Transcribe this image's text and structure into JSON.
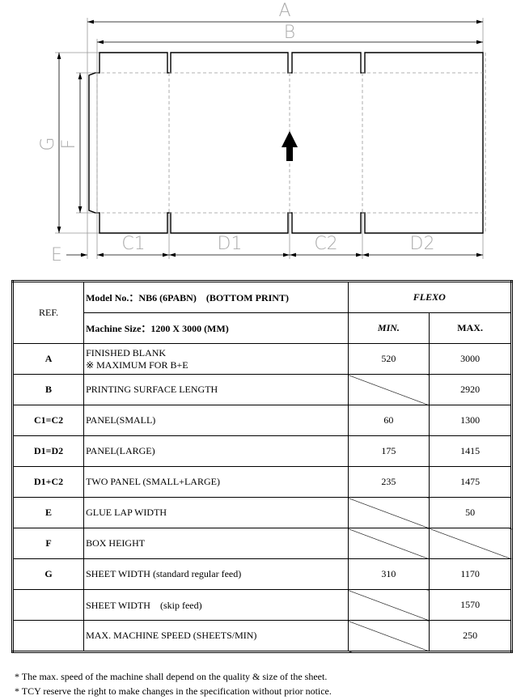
{
  "diagram": {
    "labels": {
      "A": "A",
      "B": "B",
      "G": "G",
      "F": "F",
      "E": "E",
      "C1": "C1",
      "D1": "D1",
      "C2": "C2",
      "D2": "D2"
    }
  },
  "table": {
    "ref_header": "REF.",
    "model": "Model No.：NB6 (6PABN)　(BOTTOM PRINT)",
    "machine_size": "Machine Size：1200 X 3000 (MM)",
    "flexo": "FLEXO",
    "min": "MIN.",
    "max": "MAX.",
    "rows": [
      {
        "ref": "A",
        "desc": "FINISHED BLANK",
        "desc2": "※ MAXIMUM FOR B+E",
        "min": "520",
        "max": "3000"
      },
      {
        "ref": "B",
        "desc": "PRINTING SURFACE LENGTH",
        "min": null,
        "max": "2920"
      },
      {
        "ref": "C1=C2",
        "desc": "PANEL(SMALL)",
        "min": "60",
        "max": "1300"
      },
      {
        "ref": "D1=D2",
        "desc": "PANEL(LARGE)",
        "min": "175",
        "max": "1415"
      },
      {
        "ref": "D1+C2",
        "desc": "TWO PANEL (SMALL+LARGE)",
        "min": "235",
        "max": "1475"
      },
      {
        "ref": "E",
        "desc": "GLUE LAP WIDTH",
        "min": null,
        "max": "50"
      },
      {
        "ref": "F",
        "desc": "BOX HEIGHT",
        "min": null,
        "max": null
      },
      {
        "ref": "G",
        "desc": "SHEET WIDTH (standard regular feed)",
        "min": "310",
        "max": "1170"
      },
      {
        "ref": "",
        "desc": "SHEET WIDTH　(skip feed)",
        "min": null,
        "max": "1570"
      },
      {
        "ref": "",
        "desc": " MAX. MACHINE SPEED (SHEETS/MIN)",
        "min": null,
        "max": "250"
      }
    ]
  },
  "notes": [
    "* The max. speed of the machine shall depend on the quality & size of the sheet.",
    "* TCY reserve the right to make changes in the specification without prior notice."
  ]
}
